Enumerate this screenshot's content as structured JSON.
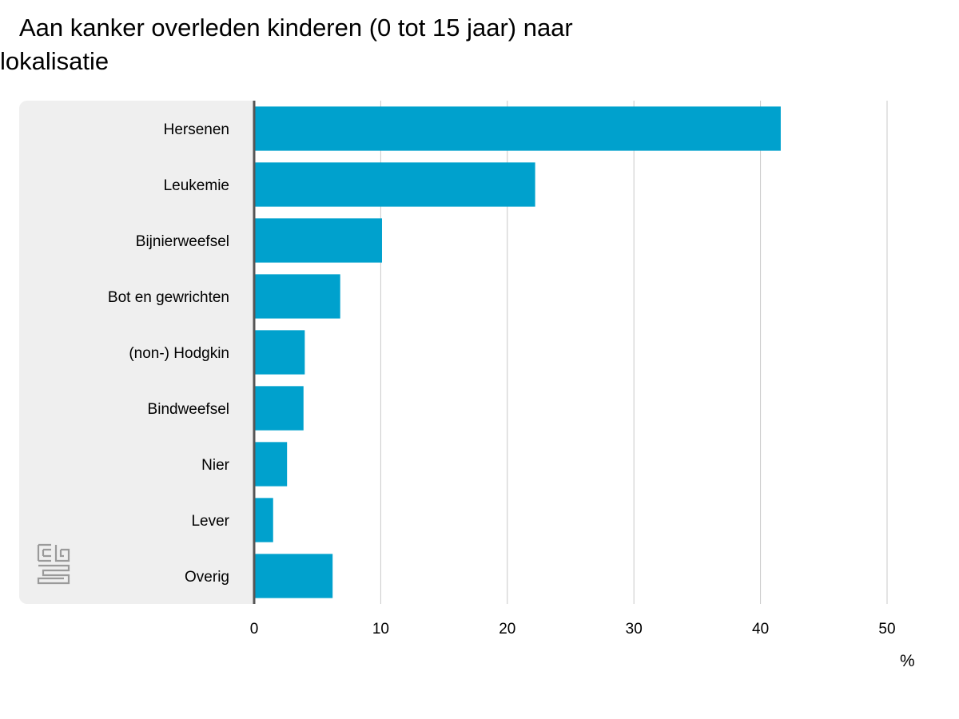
{
  "title": "Aan kanker overleden kinderen (0 tot 15 jaar) naar lokalisatie",
  "unit_label": "%",
  "logo": "cbs",
  "colors": {
    "bar": "#00a1cd",
    "grid": "#c8c8c8",
    "axis": "#555555",
    "panel": "#efefef"
  },
  "chart_data": {
    "type": "bar",
    "orientation": "horizontal",
    "categories": [
      "Hersenen",
      "Leukemie",
      "Bijnierweefsel",
      "Bot en gewrichten",
      "(non-) Hodgkin",
      "Bindweefsel",
      "Nier",
      "Lever",
      "Overig"
    ],
    "values": [
      41.6,
      22.2,
      10.1,
      6.8,
      4.0,
      3.9,
      2.6,
      1.5,
      6.2
    ],
    "xlim": [
      0,
      50
    ],
    "xticks": [
      0,
      10,
      20,
      30,
      40,
      50
    ],
    "xlabel": "%",
    "grid": true
  }
}
